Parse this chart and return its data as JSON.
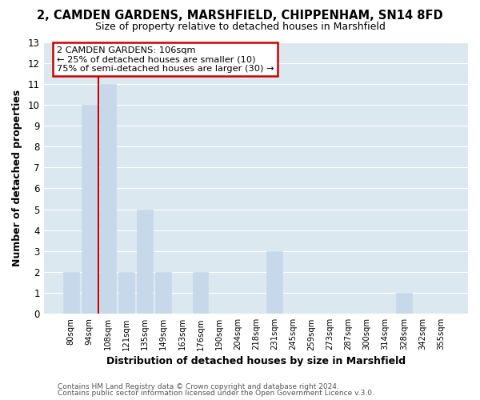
{
  "title": "2, CAMDEN GARDENS, MARSHFIELD, CHIPPENHAM, SN14 8FD",
  "subtitle": "Size of property relative to detached houses in Marshfield",
  "xlabel": "Distribution of detached houses by size in Marshfield",
  "ylabel": "Number of detached properties",
  "bar_labels": [
    "80sqm",
    "94sqm",
    "108sqm",
    "121sqm",
    "135sqm",
    "149sqm",
    "163sqm",
    "176sqm",
    "190sqm",
    "204sqm",
    "218sqm",
    "231sqm",
    "245sqm",
    "259sqm",
    "273sqm",
    "287sqm",
    "300sqm",
    "314sqm",
    "328sqm",
    "342sqm",
    "355sqm"
  ],
  "bar_values": [
    2,
    10,
    11,
    2,
    5,
    2,
    0,
    2,
    0,
    0,
    0,
    3,
    0,
    0,
    0,
    0,
    0,
    0,
    1,
    0,
    0
  ],
  "highlight_bar_index": 2,
  "bar_color": "#c8d8eb",
  "bar_edgecolor": "#c8d8eb",
  "highlight_line_color": "#cc0000",
  "annotation_title": "2 CAMDEN GARDENS: 106sqm",
  "annotation_line1": "← 25% of detached houses are smaller (10)",
  "annotation_line2": "75% of semi-detached houses are larger (30) →",
  "annotation_box_facecolor": "#ffffff",
  "annotation_box_edgecolor": "#cc0000",
  "ylim": [
    0,
    13
  ],
  "yticks": [
    0,
    1,
    2,
    3,
    4,
    5,
    6,
    7,
    8,
    9,
    10,
    11,
    12,
    13
  ],
  "footer1": "Contains HM Land Registry data © Crown copyright and database right 2024.",
  "footer2": "Contains public sector information licensed under the Open Government Licence v.3.0.",
  "fig_bg_color": "#ffffff",
  "plot_bg_color": "#dce8f0",
  "grid_color": "#ffffff",
  "fig_width": 6.0,
  "fig_height": 5.0
}
